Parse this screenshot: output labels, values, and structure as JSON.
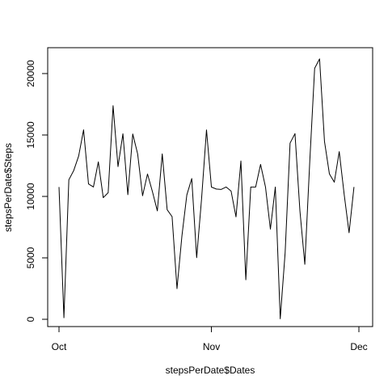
{
  "chart_data": {
    "type": "line",
    "title": "",
    "xlabel": "stepsPerDate$Dates",
    "ylabel": "stepsPerDate$Steps",
    "xlim": [
      "2012-10-01",
      "2012-12-01"
    ],
    "ylim": [
      0,
      22000
    ],
    "x_ticks": [
      {
        "date": "2012-10-01",
        "label": "Oct"
      },
      {
        "date": "2012-11-01",
        "label": "Nov"
      },
      {
        "date": "2012-12-01",
        "label": "Dec"
      }
    ],
    "y_ticks": [
      0,
      5000,
      10000,
      15000,
      20000
    ],
    "series": [
      {
        "dates": [
          "2012-10-01",
          "2012-10-02",
          "2012-10-03",
          "2012-10-04",
          "2012-10-05",
          "2012-10-06",
          "2012-10-07",
          "2012-10-08",
          "2012-10-09",
          "2012-10-10",
          "2012-10-11",
          "2012-10-12",
          "2012-10-13",
          "2012-10-14",
          "2012-10-15",
          "2012-10-16",
          "2012-10-17",
          "2012-10-18",
          "2012-10-19",
          "2012-10-20",
          "2012-10-21",
          "2012-10-22",
          "2012-10-23",
          "2012-10-24",
          "2012-10-25",
          "2012-10-26",
          "2012-10-27",
          "2012-10-28",
          "2012-10-29",
          "2012-10-30",
          "2012-10-31",
          "2012-11-01",
          "2012-11-02",
          "2012-11-03",
          "2012-11-04",
          "2012-11-05",
          "2012-11-06",
          "2012-11-07",
          "2012-11-08",
          "2012-11-09",
          "2012-11-10",
          "2012-11-11",
          "2012-11-12",
          "2012-11-13",
          "2012-11-14",
          "2012-11-15",
          "2012-11-16",
          "2012-11-17",
          "2012-11-18",
          "2012-11-19",
          "2012-11-20",
          "2012-11-21",
          "2012-11-22",
          "2012-11-23",
          "2012-11-24",
          "2012-11-25",
          "2012-11-26",
          "2012-11-27",
          "2012-11-28",
          "2012-11-29",
          "2012-11-30"
        ],
        "values": [
          10766,
          126,
          11352,
          12116,
          13294,
          15420,
          11015,
          10766,
          12811,
          9900,
          10304,
          17382,
          12426,
          15098,
          10139,
          15084,
          13452,
          10056,
          11829,
          10395,
          8821,
          13460,
          8918,
          8355,
          2492,
          6778,
          10119,
          11458,
          5018,
          9819,
          15414,
          10766,
          10600,
          10571,
          10766,
          10439,
          8334,
          12883,
          3219,
          10766,
          10766,
          12608,
          10765,
          7336,
          10766,
          41,
          5441,
          14339,
          15110,
          8841,
          4472,
          12787,
          20427,
          21194,
          14478,
          11834,
          11162,
          13646,
          10183,
          7047,
          10766
        ]
      }
    ]
  }
}
